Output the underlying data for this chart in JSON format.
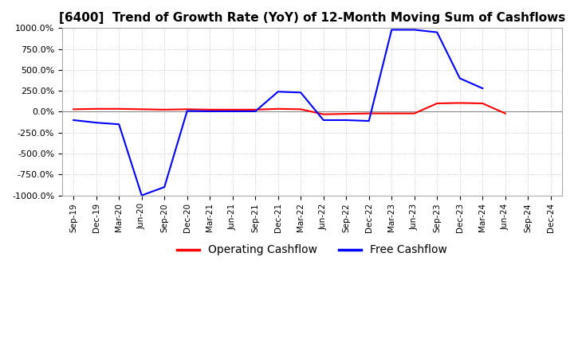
{
  "title": "[6400]  Trend of Growth Rate (YoY) of 12-Month Moving Sum of Cashflows",
  "title_fontsize": 11,
  "ylim": [
    -1000,
    1000
  ],
  "yticks": [
    1000.0,
    750.0,
    500.0,
    250.0,
    0.0,
    -250.0,
    -500.0,
    -750.0,
    -1000.0
  ],
  "ytick_labels": [
    "1000.0%",
    "750.0%",
    "500.0%",
    "250.0%",
    "0.0%",
    "-250.0%",
    "-500.0%",
    "-750.0%",
    "-1000.0%"
  ],
  "background_color": "#ffffff",
  "grid_color": "#bbbbbb",
  "legend_labels": [
    "Operating Cashflow",
    "Free Cashflow"
  ],
  "legend_colors": [
    "#ff0000",
    "#0000ff"
  ],
  "x_labels": [
    "Sep-19",
    "Dec-19",
    "Mar-20",
    "Jun-20",
    "Sep-20",
    "Dec-20",
    "Mar-21",
    "Jun-21",
    "Sep-21",
    "Dec-21",
    "Mar-22",
    "Jun-22",
    "Sep-22",
    "Dec-22",
    "Mar-23",
    "Jun-23",
    "Sep-23",
    "Dec-23",
    "Mar-24",
    "Jun-24",
    "Sep-24",
    "Dec-24"
  ],
  "operating_cashflow": [
    30,
    35,
    35,
    30,
    25,
    30,
    25,
    25,
    25,
    35,
    30,
    -30,
    -25,
    -20,
    -20,
    -20,
    100,
    105,
    100,
    -20,
    null,
    null
  ],
  "free_cashflow": [
    -100,
    -130,
    -150,
    -1000,
    -900,
    10,
    5,
    5,
    5,
    240,
    230,
    -100,
    -100,
    -110,
    980,
    980,
    950,
    400,
    280,
    null,
    null,
    null
  ]
}
